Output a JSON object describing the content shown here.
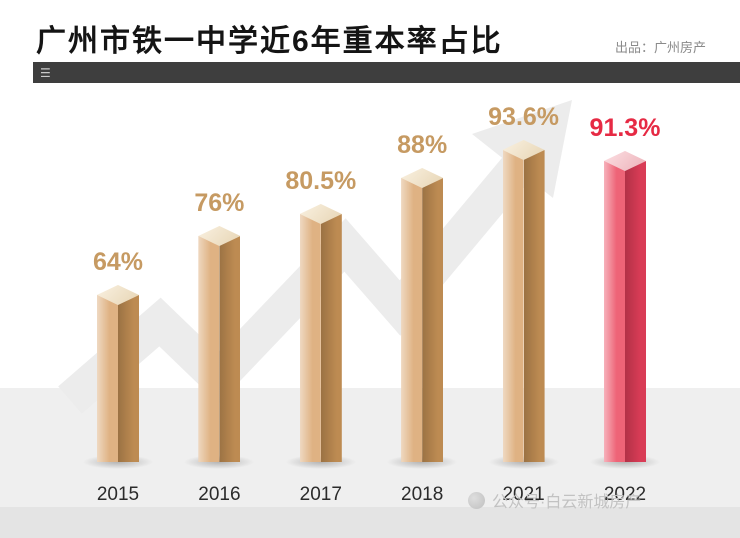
{
  "header": {
    "title": "广州市铁一中学近6年重本率占比",
    "source": "出品：广州房产"
  },
  "toolbar": {
    "menu_icon": "☰"
  },
  "chart_data": {
    "type": "bar",
    "title": "广州市铁一中学近6年重本率占比",
    "categories": [
      "2015",
      "2016",
      "2017",
      "2018",
      "2021",
      "2022"
    ],
    "values": [
      64,
      76,
      80.5,
      88,
      93.6,
      91.3
    ],
    "labels": [
      "64%",
      "76%",
      "80.5%",
      "88%",
      "93.6%",
      "91.3%"
    ],
    "unit": "%",
    "ylim": [
      0,
      100
    ],
    "grid": false,
    "legend": false,
    "highlight_index": 5,
    "colors": {
      "bar_left": "#dfb283",
      "bar_right": "#bd8b52",
      "bar_top": "#f3e0bd",
      "bar_label": "#c69a62",
      "highlight_left": "#ee6477",
      "highlight_right": "#d93c56",
      "highlight_top": "#f9bac2",
      "highlight_label": "#e62a44",
      "year_label": "#2b2b2b"
    }
  },
  "footer": {
    "watermark": "公众号·白云新城房产"
  }
}
